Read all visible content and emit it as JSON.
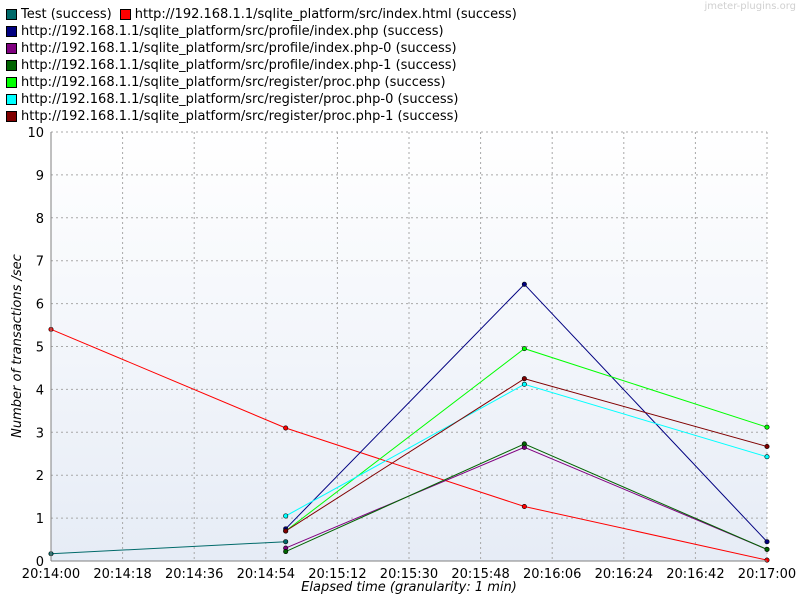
{
  "watermark": "jmeter-plugins.org",
  "chart_data": {
    "type": "line",
    "xlabel": "Elapsed time (granularity: 1 min)",
    "ylabel": "Number of transactions /sec",
    "ylim": [
      0,
      10
    ],
    "yticks": [
      "0",
      "1",
      "2",
      "3",
      "4",
      "5",
      "6",
      "7",
      "8",
      "9",
      "10"
    ],
    "xticks": [
      "20:14:00",
      "20:14:18",
      "20:14:36",
      "20:14:54",
      "20:15:12",
      "20:15:30",
      "20:15:48",
      "20:16:06",
      "20:16:24",
      "20:16:42",
      "20:17:00"
    ],
    "grid": true,
    "legend_position": "top-left",
    "series": [
      {
        "name": "Test (success)",
        "color": "#006a6a",
        "x": [
          "20:14:00",
          "20:14:59"
        ],
        "values": [
          0.17,
          0.45
        ]
      },
      {
        "name": "http://192.168.1.1/sqlite_platform/src/index.html (success)",
        "color": "#ff0000",
        "x": [
          "20:14:00",
          "20:14:59",
          "20:15:59",
          "20:17:00"
        ],
        "values": [
          5.4,
          3.1,
          1.27,
          0.02
        ]
      },
      {
        "name": "http://192.168.1.1/sqlite_platform/src/profile/index.php (success)",
        "color": "#000080",
        "x": [
          "20:14:59",
          "20:15:59",
          "20:17:00"
        ],
        "values": [
          0.75,
          6.45,
          0.45
        ]
      },
      {
        "name": "http://192.168.1.1/sqlite_platform/src/profile/index.php-0 (success)",
        "color": "#800080",
        "x": [
          "20:14:59",
          "20:15:59",
          "20:17:00"
        ],
        "values": [
          0.3,
          2.65,
          0.27
        ]
      },
      {
        "name": "http://192.168.1.1/sqlite_platform/src/profile/index.php-1 (success)",
        "color": "#006400",
        "x": [
          "20:14:59",
          "20:15:59",
          "20:17:00"
        ],
        "values": [
          0.22,
          2.73,
          0.27
        ]
      },
      {
        "name": "http://192.168.1.1/sqlite_platform/src/register/proc.php (success)",
        "color": "#00ff00",
        "x": [
          "20:14:59",
          "20:15:59",
          "20:17:00"
        ],
        "values": [
          0.7,
          4.95,
          3.12
        ]
      },
      {
        "name": "http://192.168.1.1/sqlite_platform/src/register/proc.php-0 (success)",
        "color": "#00ffff",
        "x": [
          "20:14:59",
          "20:15:59",
          "20:17:00"
        ],
        "values": [
          1.05,
          4.12,
          2.43
        ]
      },
      {
        "name": "http://192.168.1.1/sqlite_platform/src/register/proc.php-1 (success)",
        "color": "#800000",
        "x": [
          "20:14:59",
          "20:15:59",
          "20:17:00"
        ],
        "values": [
          0.7,
          4.25,
          2.67
        ]
      }
    ]
  }
}
